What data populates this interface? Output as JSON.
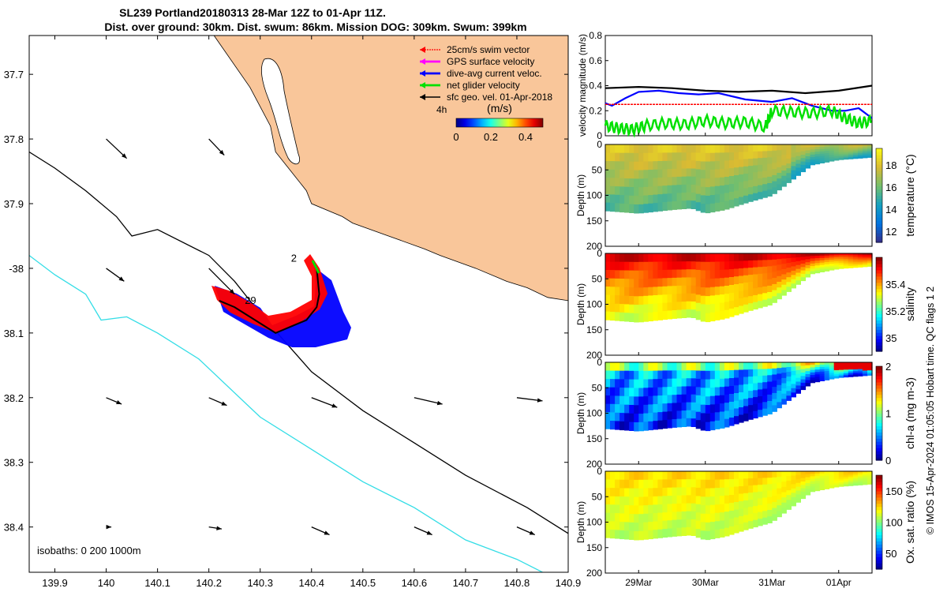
{
  "header": {
    "title_line1": "SL239 Portland20180313 28-Mar 12Z to 01-Apr 11Z.",
    "title_line2": "Dist. over ground: 30km. Dist. swum: 86km. Mission DOG: 309km. Swum: 399km"
  },
  "credit": "© IMOS 15-Apr-2024 01:05:05 Hobart time. QC flags 1 2",
  "colors": {
    "land": "#F9C69A",
    "swim": "#FF0000",
    "gps": "#FF00FF",
    "diveavg": "#0000FF",
    "net": "#00E000",
    "geo": "#000000",
    "isobath_200": "#000000",
    "isobath_1000": "#33DDE6"
  },
  "chart_data": [
    {
      "type": "map",
      "xlim": [
        139.85,
        140.9
      ],
      "ylim": [
        -38.47,
        -37.64
      ],
      "xticks": [
        139.9,
        140,
        140.1,
        140.2,
        140.3,
        140.4,
        140.5,
        140.6,
        140.7,
        140.8,
        140.9
      ],
      "xtick_labels": [
        "139.9",
        "140",
        "140.1",
        "140.2",
        "140.3",
        "140.4",
        "140.5",
        "140.6",
        "140.7",
        "140.8",
        "140.9"
      ],
      "yticks": [
        -37.7,
        -37.8,
        -37.9,
        -38.0,
        -38.1,
        -38.2,
        -38.3,
        -38.4
      ],
      "ytick_labels": [
        "37.7",
        "37.8",
        "37.9",
        "-38",
        "38.1",
        "38.2",
        "38.3",
        "38.4"
      ],
      "legend": [
        {
          "label": "25cm/s swim vector",
          "color": "#FF0000"
        },
        {
          "label": "GPS surface velocity",
          "color": "#FF00FF"
        },
        {
          "label": "dive-avg current veloc.",
          "color": "#0000FF"
        },
        {
          "label": "net glider velocity",
          "color": "#00E000"
        },
        {
          "label": "sfc geo. vel. 01-Apr-2018",
          "color": "#000000"
        }
      ],
      "colorbar": {
        "title": "(m/s)",
        "side_label": "4h",
        "range": [
          0,
          0.5
        ],
        "tick_labels": [
          "0",
          "0.2",
          "0.4"
        ],
        "ticks": [
          0,
          0.2,
          0.4
        ]
      },
      "isobath_label": "isobaths: 0   200  1000m",
      "track_labels": [
        {
          "text": "2",
          "lon": 140.36,
          "lat": -37.99
        },
        {
          "text": "29",
          "lon": 140.27,
          "lat": -38.055
        }
      ],
      "coast": [
        [
          140.21,
          -37.64
        ],
        [
          140.28,
          -37.72
        ],
        [
          140.32,
          -37.78
        ],
        [
          140.33,
          -37.82
        ],
        [
          140.36,
          -37.85
        ],
        [
          140.38,
          -37.87
        ],
        [
          140.39,
          -37.88
        ],
        [
          140.4,
          -37.9
        ],
        [
          140.46,
          -37.92
        ],
        [
          140.48,
          -37.93
        ],
        [
          140.55,
          -37.95
        ],
        [
          140.62,
          -37.97
        ],
        [
          140.65,
          -37.98
        ],
        [
          140.72,
          -38.0
        ],
        [
          140.78,
          -38.02
        ],
        [
          140.82,
          -38.03
        ],
        [
          140.86,
          -38.045
        ],
        [
          140.9,
          -38.05
        ]
      ],
      "isobath_200": [
        [
          139.85,
          -37.82
        ],
        [
          139.9,
          -37.845
        ],
        [
          139.96,
          -37.88
        ],
        [
          140.02,
          -37.92
        ],
        [
          140.05,
          -37.95
        ],
        [
          140.1,
          -37.94
        ],
        [
          140.2,
          -37.98
        ],
        [
          140.25,
          -38.02
        ],
        [
          140.3,
          -38.07
        ],
        [
          140.4,
          -38.16
        ],
        [
          140.5,
          -38.22
        ],
        [
          140.6,
          -38.27
        ],
        [
          140.7,
          -38.32
        ],
        [
          140.82,
          -38.37
        ],
        [
          140.9,
          -38.41
        ]
      ],
      "isobath_1000": [
        [
          139.85,
          -37.98
        ],
        [
          139.9,
          -38.01
        ],
        [
          139.96,
          -38.04
        ],
        [
          139.99,
          -38.08
        ],
        [
          140.04,
          -38.075
        ],
        [
          140.1,
          -38.1
        ],
        [
          140.18,
          -38.14
        ],
        [
          140.3,
          -38.23
        ],
        [
          140.4,
          -38.28
        ],
        [
          140.5,
          -38.33
        ],
        [
          140.6,
          -38.37
        ],
        [
          140.7,
          -38.42
        ],
        [
          140.8,
          -38.45
        ],
        [
          140.9,
          -38.49
        ]
      ],
      "geo_vectors": [
        [
          140.0,
          -37.8,
          0.04,
          -0.03
        ],
        [
          140.2,
          -37.8,
          0.03,
          -0.025
        ],
        [
          140.0,
          -38.0,
          0.035,
          -0.02
        ],
        [
          140.2,
          -38.0,
          0.05,
          -0.04
        ],
        [
          140.0,
          -38.2,
          0.03,
          -0.01
        ],
        [
          140.2,
          -38.2,
          0.035,
          -0.012
        ],
        [
          140.4,
          -38.2,
          0.05,
          -0.015
        ],
        [
          140.6,
          -38.2,
          0.055,
          -0.01
        ],
        [
          140.8,
          -38.2,
          0.05,
          -0.005
        ],
        [
          140.0,
          -38.4,
          0.01,
          0
        ],
        [
          140.2,
          -38.4,
          0.025,
          -0.003
        ],
        [
          140.4,
          -38.4,
          0.035,
          -0.012
        ],
        [
          140.6,
          -38.4,
          0.035,
          -0.012
        ],
        [
          140.8,
          -38.4,
          0.035,
          -0.012
        ]
      ],
      "glider_track": [
        [
          140.41,
          -38.0
        ],
        [
          140.415,
          -38.04
        ],
        [
          140.41,
          -38.06
        ],
        [
          140.39,
          -38.08
        ],
        [
          140.36,
          -38.09
        ],
        [
          140.33,
          -38.1
        ],
        [
          140.29,
          -38.08
        ],
        [
          140.25,
          -38.06
        ],
        [
          140.22,
          -38.05
        ]
      ]
    },
    {
      "type": "line",
      "ylabel": "velocity magnitude (m/s)",
      "ylim": [
        0,
        0.8
      ],
      "yticks": [
        0,
        0.2,
        0.4,
        0.6,
        0.8
      ],
      "ytick_labels": [
        "0",
        "0.2",
        "0.4",
        "0.6",
        "0.8"
      ],
      "xlim": [
        28.5,
        32.5
      ],
      "series": [
        {
          "name": "sfc geo. vel.",
          "color": "#000000",
          "x": [
            28.5,
            29,
            29.5,
            30,
            30.5,
            31,
            31.5,
            32,
            32.5
          ],
          "y": [
            0.38,
            0.39,
            0.38,
            0.36,
            0.35,
            0.36,
            0.34,
            0.36,
            0.4
          ]
        },
        {
          "name": "dive-avg current veloc.",
          "color": "#0000FF",
          "x": [
            28.5,
            28.6,
            28.8,
            29,
            29.3,
            29.6,
            29.9,
            30.2,
            30.6,
            31,
            31.3,
            31.6,
            31.9,
            32.1,
            32.3,
            32.5
          ],
          "y": [
            0.26,
            0.24,
            0.3,
            0.35,
            0.36,
            0.34,
            0.33,
            0.34,
            0.29,
            0.27,
            0.3,
            0.24,
            0.2,
            0.2,
            0.22,
            0.14
          ]
        },
        {
          "name": "25cm/s swim vector",
          "color": "#FF0000",
          "x": [
            28.5,
            32.5
          ],
          "y": [
            0.25,
            0.25
          ]
        },
        {
          "name": "net glider velocity",
          "color": "#00E000",
          "x": [
            28.5,
            28.7,
            28.9,
            29.1,
            29.4,
            29.7,
            30,
            30.3,
            30.6,
            30.9,
            31.0,
            31.3,
            31.6,
            31.9,
            32.1,
            32.3,
            32.5
          ],
          "y": [
            0.08,
            0.06,
            0.05,
            0.08,
            0.1,
            0.09,
            0.12,
            0.1,
            0.11,
            0.07,
            0.2,
            0.19,
            0.18,
            0.2,
            0.14,
            0.1,
            0.12
          ]
        }
      ]
    },
    {
      "type": "heatmap",
      "variable": "temperature",
      "ylabel": "Depth (m)",
      "yticks": [
        0,
        50,
        100,
        150,
        200
      ],
      "ytick_labels": [
        "0",
        "50",
        "100",
        "150",
        "200"
      ],
      "colorbar_label": "temperature (°C)",
      "colorbar_range": [
        11,
        19.5
      ],
      "colorbar_ticks": [
        12,
        14,
        16,
        18
      ],
      "colorbar_tick_labels": [
        "12",
        "14",
        "16",
        "18"
      ],
      "surface_value": 17.8,
      "deep_value": 15.2,
      "bottom_depth": {
        "x": [
          28.5,
          29,
          29.5,
          29.8,
          30,
          30.3,
          30.6,
          31,
          31.3,
          31.6,
          32,
          32.5
        ],
        "depth": [
          130,
          135,
          128,
          125,
          135,
          128,
          115,
          100,
          70,
          40,
          30,
          25
        ]
      }
    },
    {
      "type": "heatmap",
      "variable": "salinity",
      "ylabel": "Depth (m)",
      "yticks": [
        0,
        50,
        100,
        150,
        200
      ],
      "ytick_labels": [
        "0",
        "50",
        "100",
        "150",
        "200"
      ],
      "colorbar_label": "salinity",
      "colorbar_range": [
        34.9,
        35.6
      ],
      "colorbar_ticks": [
        35,
        35.2,
        35.4
      ],
      "colorbar_tick_labels": [
        "35",
        "35.2",
        "35.4"
      ],
      "surface_value": 35.55,
      "deep_value": 35.3,
      "bottom_depth": {
        "x": [
          28.5,
          29,
          29.5,
          29.8,
          30,
          30.3,
          30.6,
          31,
          31.3,
          31.6,
          32,
          32.5
        ],
        "depth": [
          130,
          135,
          128,
          125,
          135,
          128,
          115,
          100,
          70,
          40,
          30,
          25
        ]
      }
    },
    {
      "type": "heatmap",
      "variable": "chl-a",
      "ylabel": "Depth (m)",
      "yticks": [
        0,
        50,
        100,
        150,
        200
      ],
      "ytick_labels": [
        "0",
        "50",
        "100",
        "150",
        "200"
      ],
      "colorbar_label": "chl-a (mg m-3)",
      "colorbar_range": [
        0,
        2
      ],
      "colorbar_ticks": [
        0,
        1,
        2
      ],
      "colorbar_tick_labels": [
        "0",
        "1",
        "2"
      ],
      "surface_value": 0.6,
      "deep_value": 0.4,
      "bottom_depth": {
        "x": [
          28.5,
          29,
          29.5,
          29.8,
          30,
          30.3,
          30.6,
          31,
          31.3,
          31.6,
          32,
          32.5
        ],
        "depth": [
          130,
          135,
          128,
          125,
          135,
          128,
          115,
          100,
          70,
          40,
          30,
          25
        ]
      }
    },
    {
      "type": "heatmap",
      "variable": "oxygen",
      "ylabel": "Depth (m)",
      "yticks": [
        0,
        50,
        100,
        150,
        200
      ],
      "ytick_labels": [
        "0",
        "50",
        "100",
        "150",
        "200"
      ],
      "colorbar_label": "Ox. sat. ratio (%)",
      "colorbar_range": [
        25,
        175
      ],
      "colorbar_ticks": [
        50,
        100,
        150
      ],
      "colorbar_tick_labels": [
        "50",
        "100",
        "150"
      ],
      "surface_value": 120,
      "deep_value": 108,
      "bottom_depth": {
        "x": [
          28.5,
          29,
          29.5,
          29.8,
          30,
          30.3,
          30.6,
          31,
          31.3,
          31.6,
          32,
          32.5
        ],
        "depth": [
          130,
          135,
          128,
          125,
          135,
          128,
          115,
          100,
          70,
          40,
          30,
          25
        ]
      }
    }
  ],
  "time_axis": {
    "ticks": [
      29,
      30,
      31,
      32
    ],
    "labels": [
      "29Mar",
      "30Mar",
      "31Mar",
      "01Apr"
    ]
  }
}
